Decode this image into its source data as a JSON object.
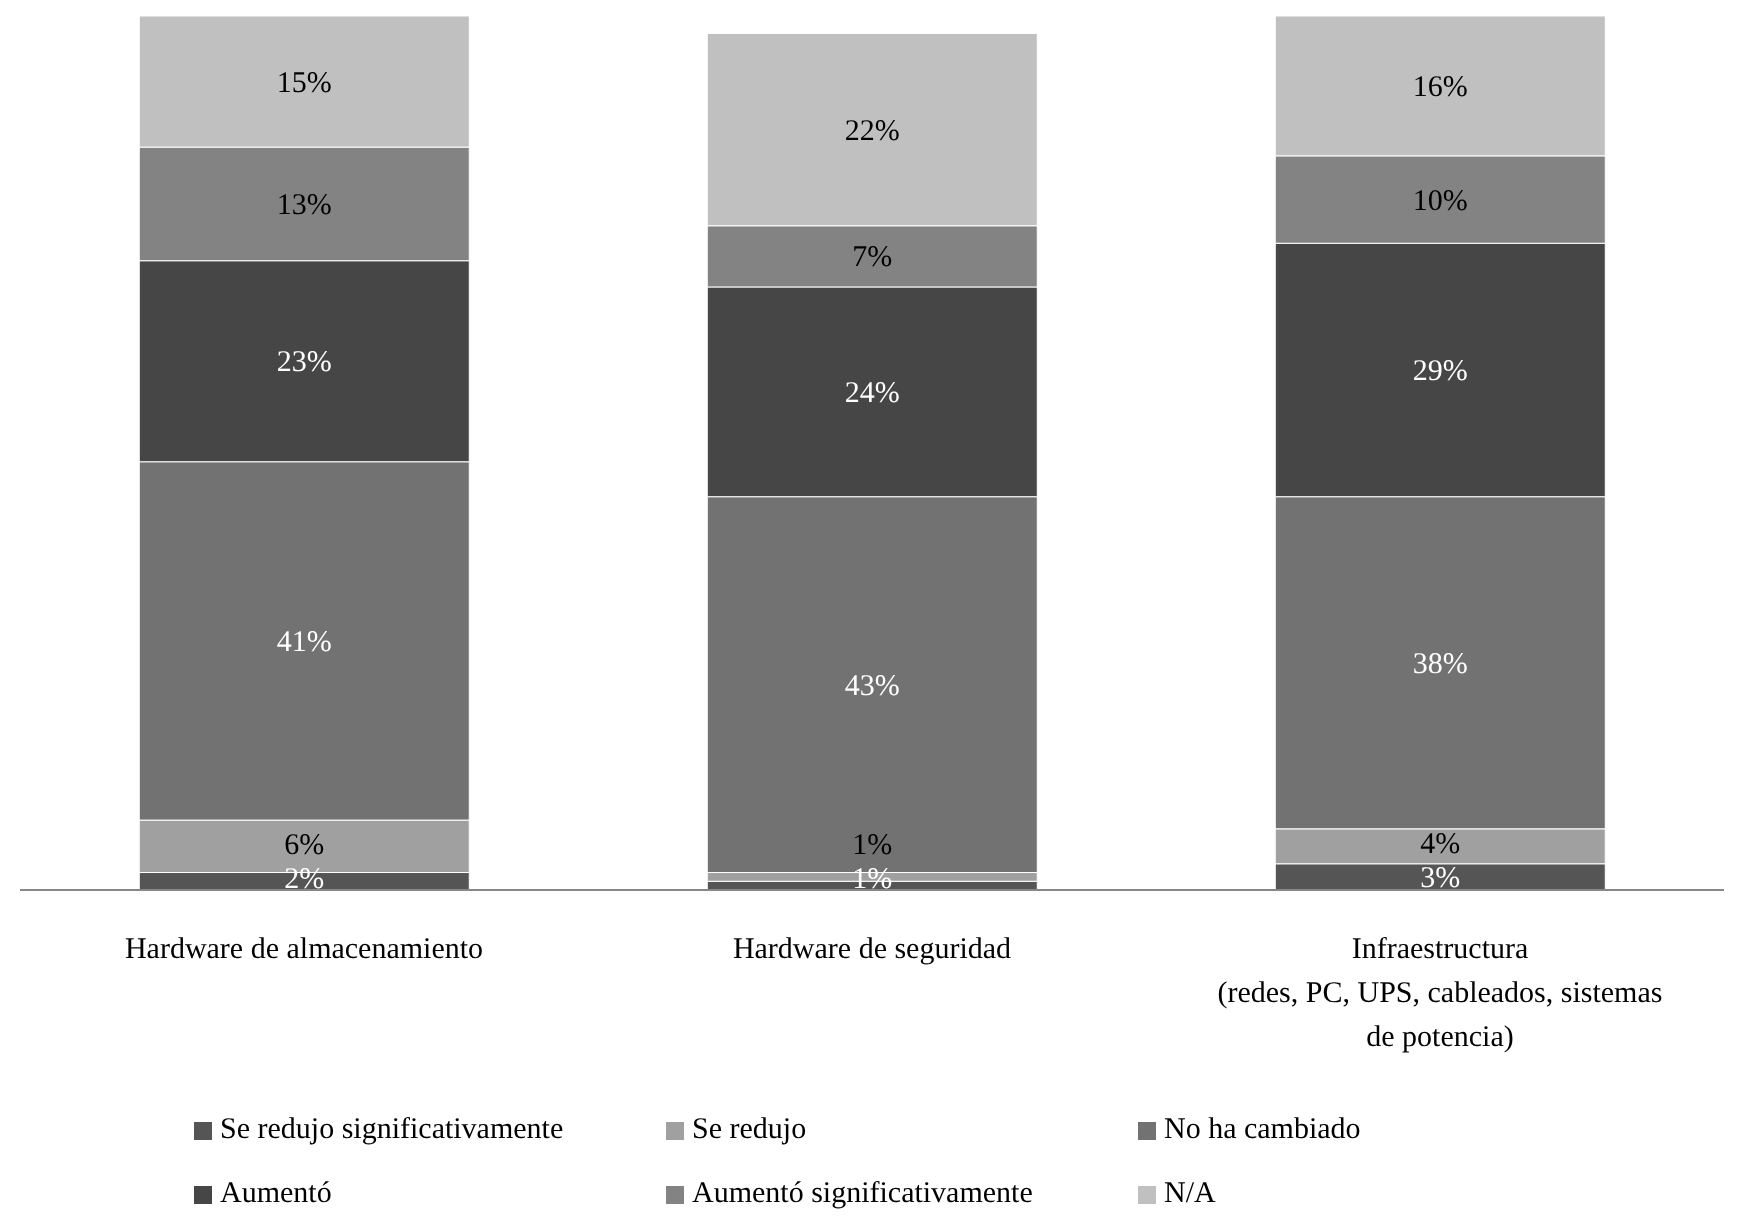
{
  "chart_data": {
    "type": "bar",
    "stacked": true,
    "legend": "bottom",
    "categories": [
      "Hardware de almacenamiento",
      "Hardware de seguridad",
      "Infraestructura\n(redes, PC, UPS, cableados, sistemas\nde potencia)"
    ],
    "series": [
      {
        "name": "Se redujo significativamente",
        "color": "#555555",
        "values": [
          2,
          1,
          3
        ],
        "value_labels": [
          "2%",
          "1%",
          "3%"
        ]
      },
      {
        "name": "Se redujo",
        "color": "#a0a0a0",
        "values": [
          6,
          1,
          4
        ],
        "value_labels": [
          "6%",
          "1%",
          "4%"
        ]
      },
      {
        "name": "No ha cambiado",
        "color": "#727272",
        "values": [
          41,
          43,
          38
        ],
        "value_labels": [
          "41%",
          "43%",
          "38%"
        ]
      },
      {
        "name": "Aumentó",
        "color": "#464646",
        "values": [
          23,
          24,
          29
        ],
        "value_labels": [
          "23%",
          "24%",
          "29%"
        ]
      },
      {
        "name": "Aumentó significativamente",
        "color": "#838383",
        "values": [
          13,
          7,
          10
        ],
        "value_labels": [
          "13%",
          "7%",
          "10%"
        ]
      },
      {
        "name": "N/A",
        "color": "#c0c0c0",
        "values": [
          15,
          22,
          16
        ],
        "value_labels": [
          "15%",
          "22%",
          "16%"
        ]
      }
    ]
  }
}
